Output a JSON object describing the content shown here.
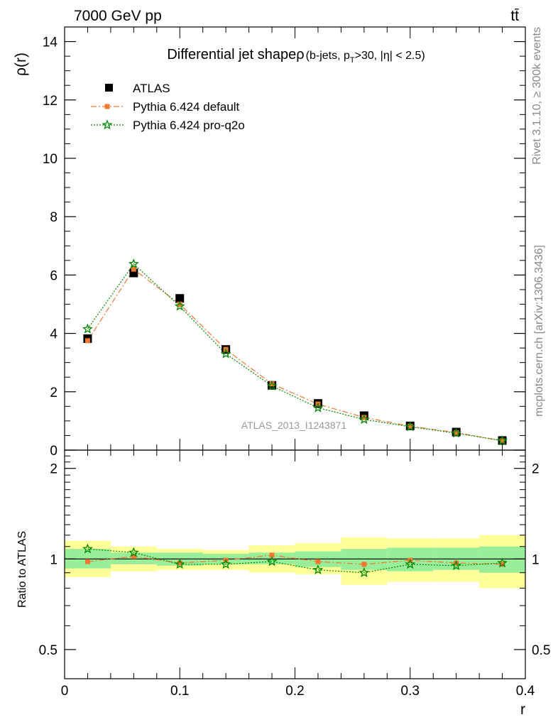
{
  "header": {
    "left": "7000 GeV pp",
    "right": "tt̄"
  },
  "side_labels": {
    "top": "Rivet 3.1.10, ≥ 300k events",
    "bottom": "mcplots.cern.ch [arXiv:1306.3436]"
  },
  "watermark": "ATLAS_2013_I1243871",
  "colors": {
    "data": "#000000",
    "pythia_default": "#f07830",
    "pythia_proq2o": "#008800",
    "band_inner": "#99ee99",
    "band_outer": "#ffff99"
  },
  "chart_data": [
    {
      "type": "line",
      "title_main": "Differential jet shapeρ",
      "title_sub_a": "(b-jets, p",
      "title_sub_t": "T",
      "title_sub_b": ">30, |η| < 2.5)",
      "ylabel": "ρ(r)",
      "xlim": [
        0,
        0.4
      ],
      "ylim": [
        0,
        14.5
      ],
      "yticks": [
        0,
        2,
        4,
        6,
        8,
        10,
        12,
        14
      ],
      "ytick_labels": [
        "0",
        "2",
        "4",
        "6",
        "8",
        "10",
        "12",
        "14"
      ],
      "x": [
        0.02,
        0.06,
        0.1,
        0.14,
        0.18,
        0.22,
        0.26,
        0.3,
        0.34,
        0.38
      ],
      "series": [
        {
          "name": "ATLAS",
          "marker": "square",
          "values": [
            3.82,
            6.07,
            5.2,
            3.45,
            2.22,
            1.6,
            1.18,
            0.83,
            0.62,
            0.33
          ]
        },
        {
          "name": "Pythia 6.424 default",
          "marker": "square-small",
          "line": "dashdot",
          "values": [
            3.75,
            6.2,
            5.0,
            3.45,
            2.27,
            1.58,
            1.12,
            0.82,
            0.6,
            0.32
          ]
        },
        {
          "name": "Pythia 6.424 pro-q2o",
          "marker": "star",
          "line": "dotted",
          "values": [
            4.15,
            6.38,
            4.93,
            3.3,
            2.2,
            1.45,
            1.05,
            0.8,
            0.58,
            0.32
          ]
        }
      ],
      "legend_position": "top-left"
    },
    {
      "type": "line",
      "ylabel": "Ratio to ATLAS",
      "xlabel": "r",
      "xlim": [
        0,
        0.4
      ],
      "ylim": [
        0.4,
        2.3
      ],
      "yscale": "log",
      "yticks_labeled": [
        0.5,
        1,
        2
      ],
      "ytick_labels": [
        "0.5",
        "1",
        "2"
      ],
      "xticks": [
        0,
        0.1,
        0.2,
        0.3,
        0.4
      ],
      "xtick_labels": [
        "0",
        "0.1",
        "0.2",
        "0.3",
        "0.4"
      ],
      "x": [
        0.02,
        0.06,
        0.1,
        0.14,
        0.18,
        0.22,
        0.26,
        0.3,
        0.34,
        0.38
      ],
      "x_edges": [
        0,
        0.04,
        0.08,
        0.12,
        0.16,
        0.2,
        0.24,
        0.28,
        0.32,
        0.36,
        0.4
      ],
      "band_inner": {
        "low": [
          0.93,
          0.96,
          0.95,
          0.96,
          0.96,
          0.94,
          0.92,
          0.91,
          0.92,
          0.9
        ],
        "high": [
          1.08,
          1.05,
          1.05,
          1.04,
          1.05,
          1.06,
          1.08,
          1.09,
          1.09,
          1.1
        ]
      },
      "band_outer": {
        "low": [
          0.87,
          0.91,
          0.92,
          0.92,
          0.9,
          0.89,
          0.82,
          0.84,
          0.84,
          0.8
        ],
        "high": [
          1.15,
          1.1,
          1.08,
          1.07,
          1.11,
          1.13,
          1.18,
          1.17,
          1.17,
          1.2
        ]
      },
      "series": [
        {
          "name": "Pythia 6.424 default",
          "marker": "square-small",
          "line": "dashdot",
          "values": [
            0.98,
            1.02,
            0.97,
            0.99,
            1.03,
            0.98,
            0.96,
            0.99,
            0.97,
            0.96
          ]
        },
        {
          "name": "Pythia 6.424 pro-q2o",
          "marker": "star",
          "line": "dotted",
          "values": [
            1.08,
            1.05,
            0.96,
            0.96,
            0.98,
            0.92,
            0.9,
            0.96,
            0.95,
            0.97
          ]
        }
      ]
    }
  ]
}
